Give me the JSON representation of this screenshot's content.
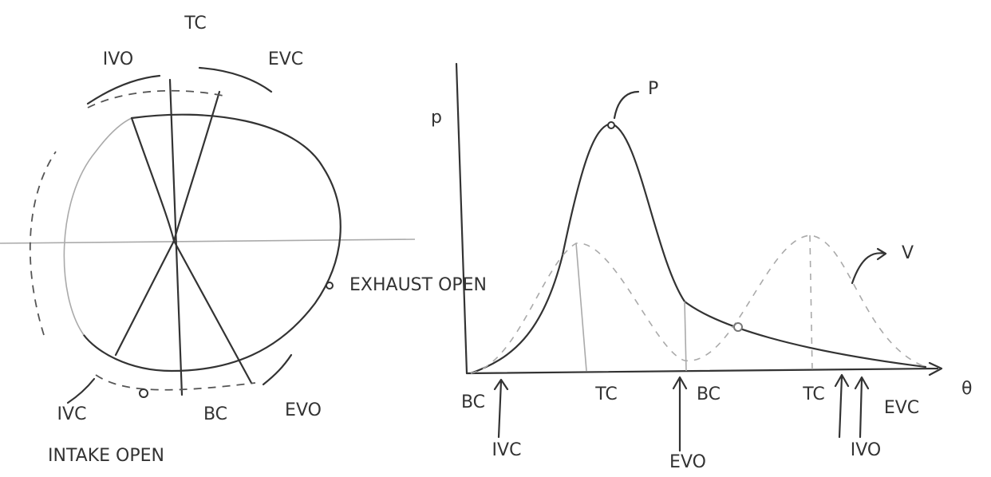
{
  "valve_diagram": {
    "top_label": "TC",
    "ivo": "IVO",
    "evc": "EVC",
    "exhaust_open": "EXHAUST OPEN",
    "ivc": "IVC",
    "bottom_label": "BC",
    "evo": "EVO",
    "intake_open": "INTAKE OPEN"
  },
  "pressure_plot": {
    "y_axis_label": "p",
    "x_axis_label": "θ",
    "pressure_label": "P",
    "volume_label": "V",
    "x_markers": [
      "BC",
      "TC",
      "BC",
      "TC"
    ],
    "events": [
      "IVC",
      "EVO",
      "IVO",
      "EVC"
    ]
  }
}
